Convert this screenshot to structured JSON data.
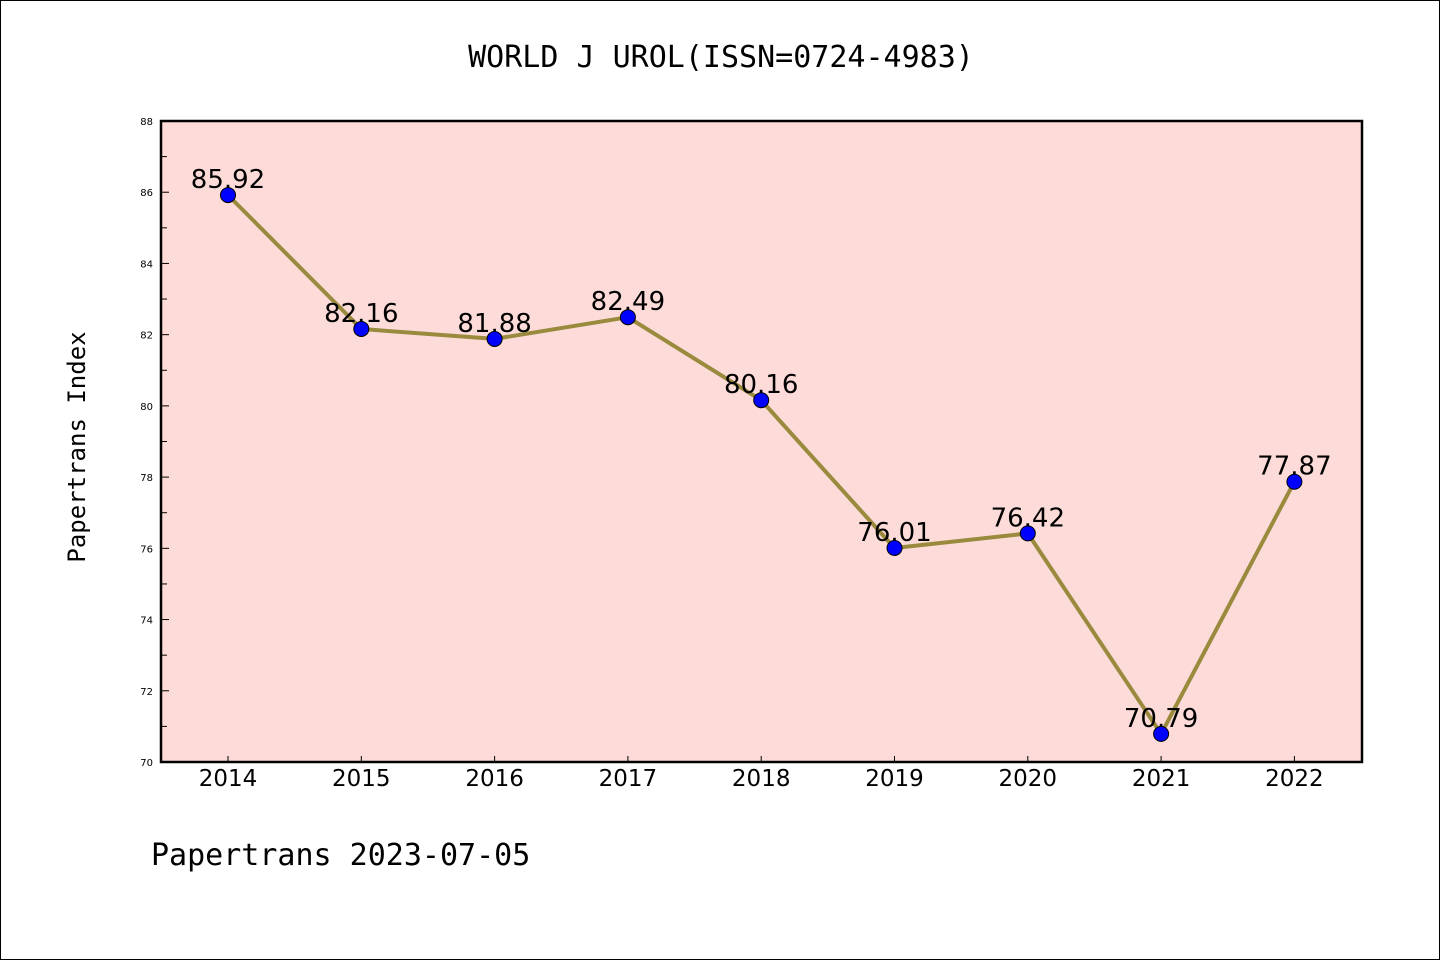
{
  "chart_data": {
    "type": "line",
    "title": "WORLD J UROL(ISSN=0724-4983)",
    "xlabel": "",
    "ylabel": "Papertrans Index",
    "footer": "Papertrans 2023-07-05",
    "categories": [
      "2014",
      "2015",
      "2016",
      "2017",
      "2018",
      "2019",
      "2020",
      "2021",
      "2022"
    ],
    "values": [
      85.92,
      82.16,
      81.88,
      82.49,
      80.16,
      76.01,
      76.42,
      70.79,
      77.87
    ],
    "data_labels": [
      "85.92",
      "82.16",
      "81.88",
      "82.49",
      "80.16",
      "76.01",
      "76.42",
      "70.79",
      "77.87"
    ],
    "ylim": [
      70,
      88
    ],
    "yticks": [
      "70",
      "72",
      "74",
      "76",
      "78",
      "80",
      "82",
      "84",
      "86",
      "88"
    ],
    "grid": false,
    "colors": {
      "plot_background": "#fddbd8",
      "line": "#9a8a3e",
      "marker": "#0000ff"
    }
  }
}
